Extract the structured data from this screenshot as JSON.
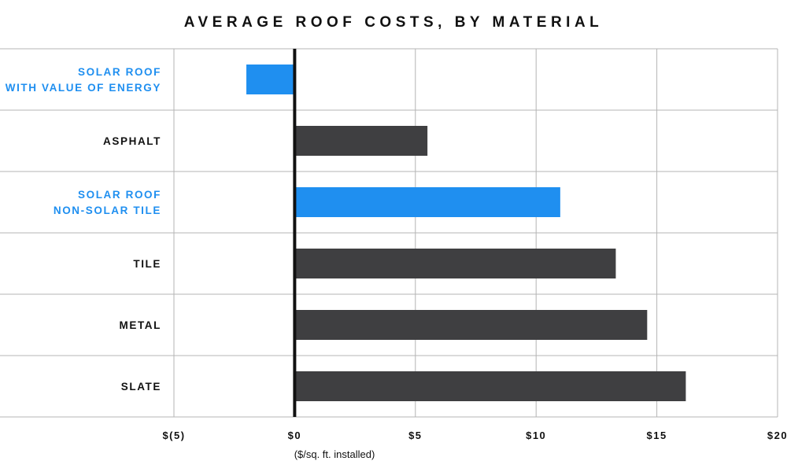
{
  "colors": {
    "highlight": "#1f8ff0",
    "bar": "#3f3f41",
    "grid": "#b4b4b4",
    "zero_line": "#111111",
    "text": "#111111"
  },
  "chart_data": {
    "type": "bar",
    "orientation": "horizontal",
    "title": "AVERAGE ROOF COSTS, BY MATERIAL",
    "xlabel": "($/sq. ft. installed)",
    "ylabel": "",
    "xlim": [
      -5,
      20
    ],
    "xticks": [
      -5,
      0,
      5,
      10,
      15,
      20
    ],
    "xtick_labels": [
      "$(5)",
      "$0",
      "$5",
      "$10",
      "$15",
      "$20"
    ],
    "grid": true,
    "legend": "none",
    "categories": [
      [
        "SOLAR ROOF",
        "WITH VALUE OF ENERGY"
      ],
      [
        "ASPHALT"
      ],
      [
        "SOLAR ROOF",
        "NON-SOLAR TILE"
      ],
      [
        "TILE"
      ],
      [
        "METAL"
      ],
      [
        "SLATE"
      ]
    ],
    "values": [
      -2.0,
      5.5,
      11.0,
      13.3,
      14.6,
      16.2
    ],
    "highlighted": [
      true,
      false,
      true,
      false,
      false,
      false
    ]
  }
}
